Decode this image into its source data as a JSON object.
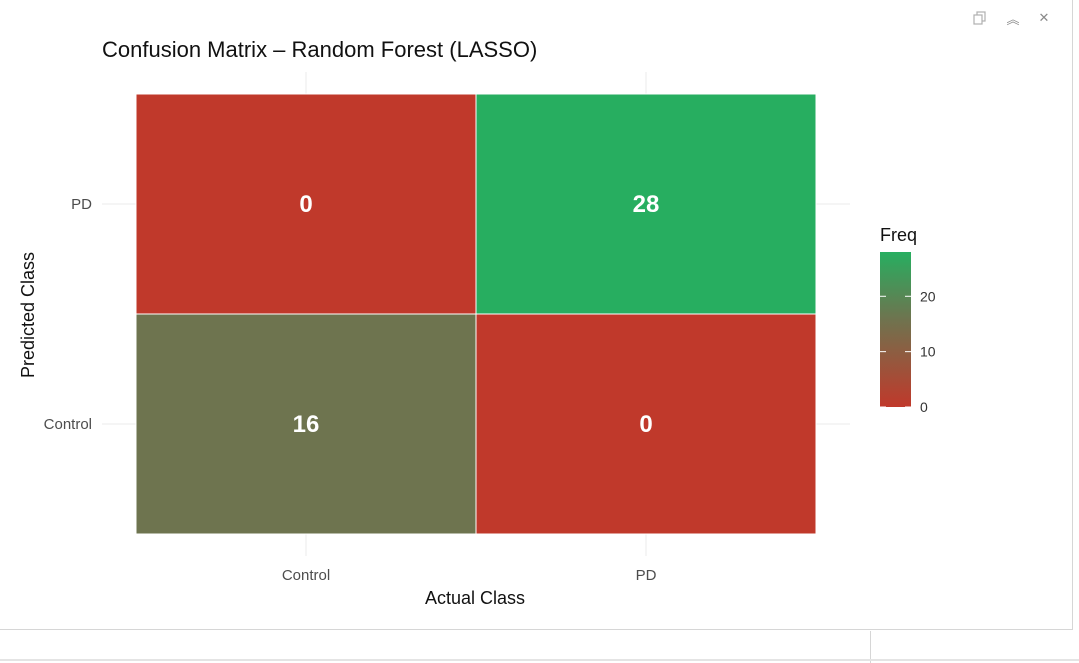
{
  "window": {
    "popout_icon": "popout-icon",
    "collapse_icon": "collapse-icon",
    "close_icon": "close-icon",
    "collapse_glyph": "︽",
    "close_glyph": "✕"
  },
  "chart_data": {
    "type": "heatmap",
    "title": "Confusion Matrix – Random Forest (LASSO)",
    "xlabel": "Actual Class",
    "ylabel": "Predicted Class",
    "x_categories": [
      "Control",
      "PD"
    ],
    "y_categories": [
      "Control",
      "PD"
    ],
    "cells": [
      {
        "actual": "Control",
        "predicted": "PD",
        "value": 0
      },
      {
        "actual": "PD",
        "predicted": "PD",
        "value": 28
      },
      {
        "actual": "Control",
        "predicted": "Control",
        "value": 16
      },
      {
        "actual": "PD",
        "predicted": "Control",
        "value": 0
      }
    ],
    "legend": {
      "title": "Freq",
      "ticks": [
        0,
        10,
        20
      ],
      "range": [
        0,
        28
      ],
      "placement": "right"
    },
    "colors": {
      "low": "#c0392b",
      "high": "#27ae60"
    },
    "grid": true
  }
}
